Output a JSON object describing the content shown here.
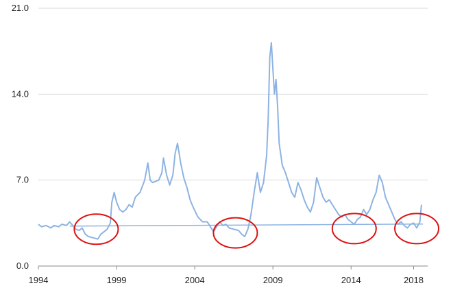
{
  "chart_data": {
    "type": "line",
    "title": "",
    "xlabel": "",
    "ylabel": "",
    "xlim": [
      1994,
      2018.9
    ],
    "ylim": [
      0,
      21
    ],
    "y_ticks": [
      0.0,
      7.0,
      14.0,
      21.0
    ],
    "y_tick_labels": [
      "0.0",
      "7.0",
      "14.0",
      "21.0"
    ],
    "x_ticks": [
      1994,
      1999,
      2004,
      2009,
      2014,
      2018
    ],
    "x_tick_labels": [
      "1994",
      "1999",
      "2004",
      "2009",
      "2014",
      "2018"
    ],
    "grid": "horizontal",
    "legend": "none",
    "colors": {
      "series": "#8db3e2",
      "annotation": "#dd1111",
      "grid": "#d9d9d9",
      "axis": "#888888"
    },
    "series": [
      {
        "x": [
          1994.0,
          1994.2,
          1994.5,
          1994.8,
          1995.0,
          1995.3,
          1995.5,
          1995.8,
          1996.0,
          1996.2,
          1996.4,
          1996.6,
          1996.8,
          1997.0,
          1997.2,
          1997.5,
          1997.8,
          1998.0,
          1998.2,
          1998.4,
          1998.6,
          1998.7,
          1998.85,
          1999.0,
          1999.2,
          1999.4,
          1999.6,
          1999.8,
          2000.0,
          2000.2,
          2000.5,
          2000.8,
          2001.0,
          2001.15,
          2001.3,
          2001.5,
          2001.7,
          2001.9,
          2002.0,
          2002.2,
          2002.4,
          2002.6,
          2002.75,
          2002.9,
          2003.1,
          2003.3,
          2003.5,
          2003.7,
          2003.9,
          2004.2,
          2004.5,
          2004.8,
          2005.0,
          2005.2,
          2005.4,
          2005.6,
          2005.8,
          2006.0,
          2006.2,
          2006.5,
          2006.8,
          2007.0,
          2007.2,
          2007.4,
          2007.6,
          2007.8,
          2008.0,
          2008.2,
          2008.4,
          2008.6,
          2008.7,
          2008.8,
          2008.9,
          2009.0,
          2009.1,
          2009.2,
          2009.3,
          2009.4,
          2009.6,
          2009.8,
          2010.0,
          2010.2,
          2010.4,
          2010.6,
          2010.8,
          2011.0,
          2011.2,
          2011.4,
          2011.6,
          2011.8,
          2012.0,
          2012.2,
          2012.4,
          2012.6,
          2012.8,
          2013.0,
          2013.2,
          2013.4,
          2013.6,
          2013.8,
          2014.0,
          2014.2,
          2014.4,
          2014.6,
          2014.8,
          2015.0,
          2015.2,
          2015.4,
          2015.6,
          2015.8,
          2016.0,
          2016.2,
          2016.4,
          2016.6,
          2016.8,
          2017.0,
          2017.2,
          2017.4,
          2017.6,
          2017.8,
          2018.0,
          2018.2,
          2018.4,
          2018.5
        ],
        "values": [
          3.4,
          3.2,
          3.3,
          3.1,
          3.3,
          3.2,
          3.4,
          3.3,
          3.6,
          3.3,
          3.0,
          2.9,
          3.1,
          2.6,
          2.4,
          2.3,
          2.2,
          2.6,
          2.8,
          3.0,
          3.5,
          5.2,
          6.0,
          5.2,
          4.6,
          4.4,
          4.6,
          5.0,
          4.8,
          5.6,
          6.0,
          7.0,
          8.4,
          7.0,
          6.8,
          6.9,
          7.0,
          7.6,
          8.8,
          7.4,
          6.6,
          7.4,
          9.2,
          10.0,
          8.4,
          7.2,
          6.4,
          5.4,
          4.8,
          4.0,
          3.6,
          3.6,
          3.2,
          2.8,
          3.2,
          3.6,
          3.3,
          3.4,
          3.1,
          3.0,
          2.9,
          2.6,
          2.4,
          3.0,
          4.2,
          6.0,
          7.6,
          6.0,
          6.8,
          9.0,
          12.0,
          17.0,
          18.2,
          16.0,
          14.0,
          15.2,
          13.0,
          10.0,
          8.2,
          7.6,
          6.8,
          6.0,
          5.6,
          6.8,
          6.2,
          5.4,
          4.8,
          4.4,
          5.2,
          7.2,
          6.4,
          5.6,
          5.2,
          5.4,
          5.0,
          4.6,
          4.2,
          4.0,
          4.2,
          3.8,
          3.6,
          3.4,
          3.8,
          4.0,
          4.6,
          4.2,
          4.6,
          5.4,
          6.0,
          7.4,
          6.8,
          5.6,
          5.0,
          4.4,
          3.8,
          3.4,
          3.6,
          3.3,
          3.1,
          3.4,
          3.5,
          3.1,
          3.6,
          5.0
        ]
      }
    ],
    "baseline": {
      "x": [
        1996.0,
        2018.6
      ],
      "values": [
        3.25,
        3.42
      ]
    },
    "annotations": [
      {
        "shape": "ellipse",
        "cx": 1997.7,
        "cy": 3.0
      },
      {
        "shape": "ellipse",
        "cx": 2006.6,
        "cy": 2.7
      },
      {
        "shape": "ellipse",
        "cx": 2014.2,
        "cy": 3.05
      },
      {
        "shape": "ellipse",
        "cx": 2018.2,
        "cy": 3.05
      }
    ]
  }
}
